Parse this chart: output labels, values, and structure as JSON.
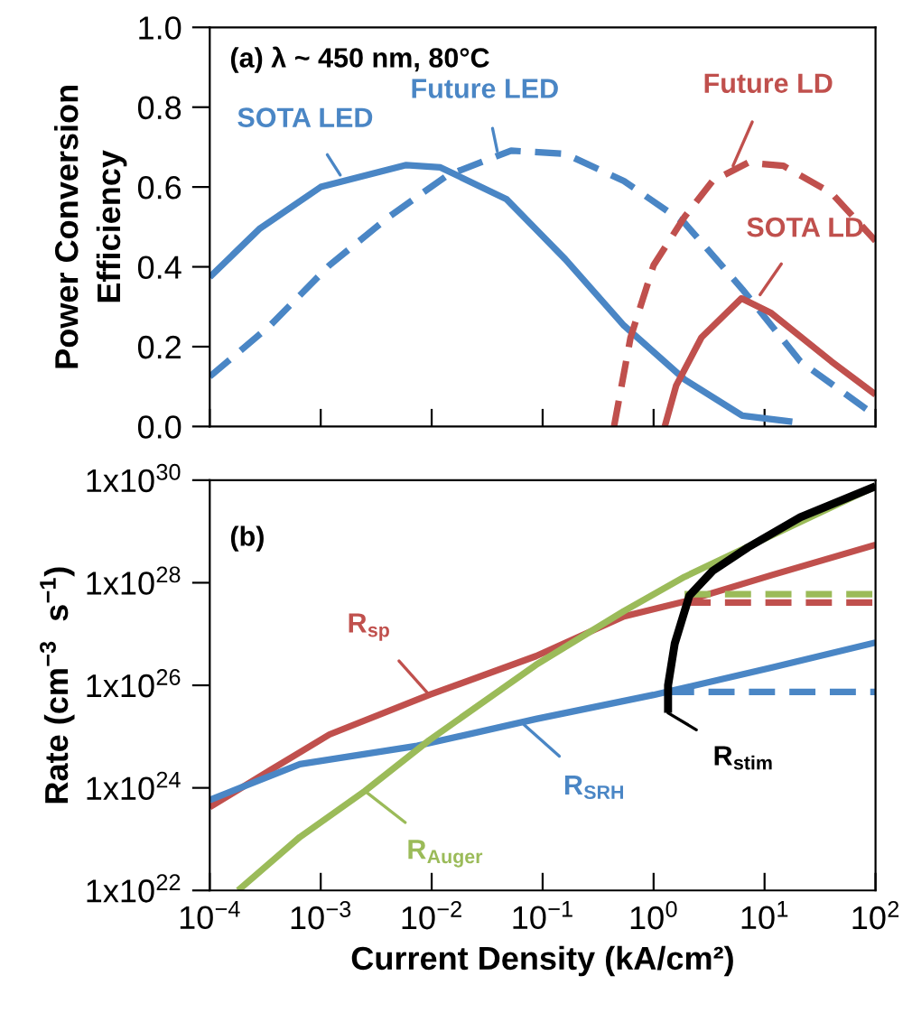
{
  "chart_data": [
    {
      "type": "line",
      "ylabel": "Power Conversion\nEfficiency",
      "log": "x",
      "xlim": [
        0.0001,
        100
      ],
      "xticks": [
        0.0001,
        0.001,
        0.01,
        0.1,
        1,
        10,
        100
      ],
      "ylim": [
        0,
        1
      ],
      "yticks": [
        {
          "value": 0,
          "label": "0.0"
        },
        0.2,
        0.4,
        0.6,
        0.8,
        {
          "value": 1,
          "label": "1.0"
        }
      ],
      "tick_labels": "y",
      "grid": false,
      "legend": false,
      "series": [
        {
          "color": "#4a86c5",
          "line_style": "solid",
          "x": [
            0.0001,
            0.00028,
            0.001,
            0.0059,
            0.012,
            0.047,
            0.16,
            0.54,
            1.9,
            6.3,
            17.8
          ],
          "values": [
            0.374,
            0.495,
            0.6,
            0.655,
            0.649,
            0.57,
            0.419,
            0.253,
            0.118,
            0.027,
            0.012
          ]
        },
        {
          "color": "#4a86c5",
          "line_style": "dashed",
          "x": [
            0.0001,
            0.00035,
            0.0012,
            0.0041,
            0.014,
            0.052,
            0.16,
            0.54,
            1.9,
            6.3,
            21,
            100
          ],
          "values": [
            0.125,
            0.253,
            0.404,
            0.525,
            0.63,
            0.691,
            0.683,
            0.615,
            0.51,
            0.344,
            0.163,
            0.027
          ]
        },
        {
          "color": "#c0504d",
          "line_style": "dashed",
          "x": [
            0.44,
            0.62,
            1,
            1.9,
            3.4,
            7.1,
            14.8,
            40,
            100
          ],
          "values": [
            0,
            0.223,
            0.404,
            0.525,
            0.615,
            0.661,
            0.653,
            0.585,
            0.465
          ]
        },
        {
          "color": "#c0504d",
          "line_style": "solid",
          "x": [
            1.26,
            1.6,
            2.7,
            6.2,
            11.5,
            40,
            100
          ],
          "values": [
            0,
            0.103,
            0.223,
            0.321,
            0.284,
            0.163,
            0.08
          ]
        }
      ],
      "annotations": [
        "(a) λ ~ 450 nm, 80°C",
        {
          "text": "SOTA LED",
          "x": 0.0015,
          "y": 0.63
        },
        {
          "text": "Future LED",
          "x": 0.039,
          "y": 0.69
        },
        {
          "text": "Future LD",
          "x": 5.2,
          "y": 0.653
        },
        {
          "text": "SOTA LD",
          "x": 9.1,
          "y": 0.33
        }
      ]
    },
    {
      "type": "line",
      "xlabel": "Current Density (kA/cm²)",
      "ylabel": "Rate (cm$^{−3}$  s$^{−1}$)",
      "log": "xy",
      "xlim": [
        0.0001,
        100
      ],
      "xticks": [
        {
          "value": 0.0001,
          "label": "10$^{−4}$"
        },
        {
          "value": 0.001,
          "label": "10$^{−3}$"
        },
        {
          "value": 0.01,
          "label": "10$^{−2}$"
        },
        {
          "value": 0.1,
          "label": "10$^{−1}$"
        },
        {
          "value": 1,
          "label": "10$^{0}$"
        },
        {
          "value": 10,
          "label": "10$^{1}$"
        },
        {
          "value": 100,
          "label": "10$^{2}$"
        }
      ],
      "ylim": [
        1e+22,
        1e+30
      ],
      "yticks": [
        {
          "value": 1e+22,
          "label": "1x10$^{22}$"
        },
        {
          "value": 1e+24,
          "label": "1x10$^{24}$"
        },
        {
          "value": 1e+26,
          "label": "1x10$^{26}$"
        },
        {
          "value": 1e+28,
          "label": "1x10$^{28}$"
        },
        {
          "value": 1e+30,
          "label": "1x10$^{30}$"
        }
      ],
      "grid": false,
      "legend": false,
      "series": [
        {
          "color": "#c0504d",
          "line_style": "solid",
          "x": [
            0.0001,
            0.00035,
            0.0012,
            0.0095,
            0.087,
            0.54,
            1.9,
            11.5,
            100
          ],
          "values": [
            4.2e+23,
            2.2e+24,
            1.1e+25,
            6.5e+25,
            3.7e+26,
            2.2e+27,
            4.3e+27,
            1.4e+28,
            5.5e+28
          ]
        },
        {
          "color": "#4a86c5",
          "line_style": "solid",
          "x": [
            0.0001,
            0.00065,
            0.0074,
            0.087,
            1,
            11.5,
            100
          ],
          "values": [
            5.8e+23,
            2.9e+24,
            6.6e+24,
            2.2e+25,
            6.5e+25,
            2.2e+26,
            6.8e+26
          ]
        },
        {
          "color": "#9bbb59",
          "line_style": "solid",
          "x": [
            0.00018,
            0.00065,
            0.0025,
            0.0095,
            0.087,
            0.54,
            1.9,
            11.5,
            100
          ],
          "values": [
            1e+22,
            1.1e+23,
            8.7e+23,
            8.5e+24,
            2.5e+26,
            2.8e+27,
            1.3e+28,
            8.3e+28,
            7.6e+29
          ]
        },
        {
          "color": "#9bbb59",
          "line_style": "dashed",
          "x": [
            1.9,
            100
          ],
          "values": [
            6e+27,
            6e+27
          ]
        },
        {
          "color": "#c0504d",
          "line_style": "dashed",
          "x": [
            1.9,
            100
          ],
          "values": [
            4.1e+27,
            4.1e+27
          ]
        },
        {
          "color": "#4a86c5",
          "line_style": "dashed",
          "x": [
            1.35,
            100
          ],
          "values": [
            7.4e+25,
            7.4e+25
          ]
        },
        {
          "color": "#000000",
          "line_style": "solid",
          "x": [
            1.35,
            1.35,
            1.55,
            2.1,
            3.4,
            7.1,
            21,
            100
          ],
          "values": [
            2.9e+25,
            1e+26,
            6.5e+26,
            5.6e+27,
            1.7e+28,
            4.9e+28,
            1.9e+29,
            7.6e+29
          ]
        }
      ],
      "annotations": [
        "(b)",
        {
          "text": "R$_{sp}$",
          "x": 0.0095,
          "y": 6.5e+25
        },
        {
          "text": "R$_{SRH}$",
          "x": 0.068,
          "y": 1.7e+25
        },
        {
          "text": "R$_{Auger}$",
          "x": 0.0025,
          "y": 8.7e+23
        },
        {
          "text": "R$_{stim}$",
          "x": 1.35,
          "y": 2.9e+25
        }
      ]
    }
  ]
}
